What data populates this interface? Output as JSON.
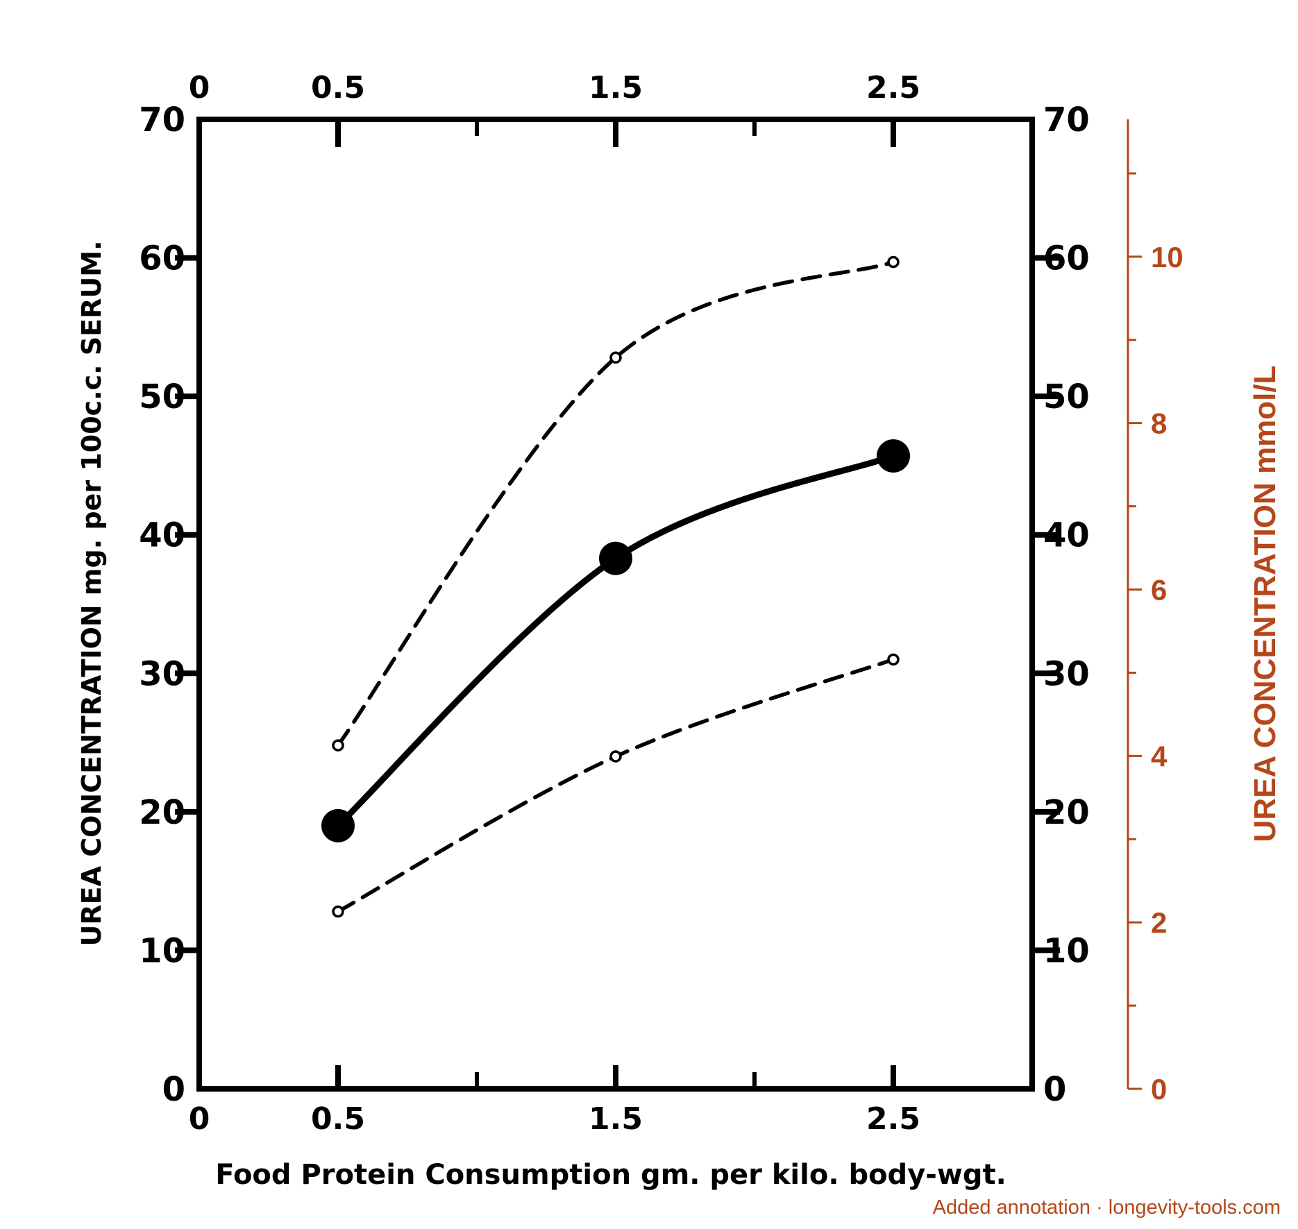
{
  "chart_data": {
    "type": "line",
    "x_axis": {
      "label": "Food Protein Consumption gm. per kilo. body-wgt.",
      "range": [
        0,
        3
      ],
      "bottom_ticks": [
        0,
        0.5,
        1,
        1.5,
        2,
        2.5,
        3
      ],
      "bottom_tick_labels": [
        {
          "value": 0,
          "text": "0"
        },
        {
          "value": 0.5,
          "text": "0.5"
        },
        {
          "value": 1.5,
          "text": "1.5"
        },
        {
          "value": 2.5,
          "text": "2.5"
        }
      ],
      "top_ticks": [
        0.5,
        1,
        1.5,
        2,
        2.5
      ],
      "top_tick_labels": [
        {
          "value": 0,
          "text": "0"
        },
        {
          "value": 0.5,
          "text": "0.5"
        },
        {
          "value": 1.5,
          "text": "1.5"
        },
        {
          "value": 2.5,
          "text": "2.5"
        }
      ]
    },
    "y_axis_left": {
      "label": "UREA CONCENTRATION mg. per 100c.c. SERUM.",
      "range": [
        0,
        70
      ],
      "ticks": [
        0,
        10,
        20,
        30,
        40,
        50,
        60,
        70
      ],
      "tick_labels": [
        "0",
        "10",
        "20",
        "30",
        "40",
        "50",
        "60",
        "70"
      ]
    },
    "y_axis_right": {
      "range": [
        0,
        70
      ],
      "ticks": [
        10,
        20,
        30,
        40,
        50,
        60
      ],
      "tick_labels": [
        "0",
        "10",
        "20",
        "30",
        "40",
        "50",
        "60",
        "70"
      ]
    },
    "y_axis_annotation": {
      "label": "UREA CONCENTRATION mmol/L",
      "range": [
        0,
        11.65
      ],
      "major_ticks": [
        0,
        2,
        4,
        6,
        8,
        10
      ],
      "major_tick_labels": [
        "0",
        "2",
        "4",
        "6",
        "8",
        "10"
      ],
      "minor_ticks": [
        1,
        3,
        5,
        7,
        9,
        11
      ]
    },
    "x": [
      0.5,
      1.5,
      2.5
    ],
    "series": [
      {
        "style": "dashed",
        "values": [
          24.8,
          52.8,
          59.7
        ]
      },
      {
        "style": "solid",
        "values": [
          19.0,
          38.3,
          45.7
        ]
      },
      {
        "style": "dashed",
        "values": [
          12.8,
          24.0,
          31.0
        ]
      }
    ],
    "footnote": "Added annotation · longevity-tools.com",
    "colors": {
      "ink": "#000000",
      "annotation": "#b5471a"
    },
    "grid": false,
    "legend": "none"
  }
}
